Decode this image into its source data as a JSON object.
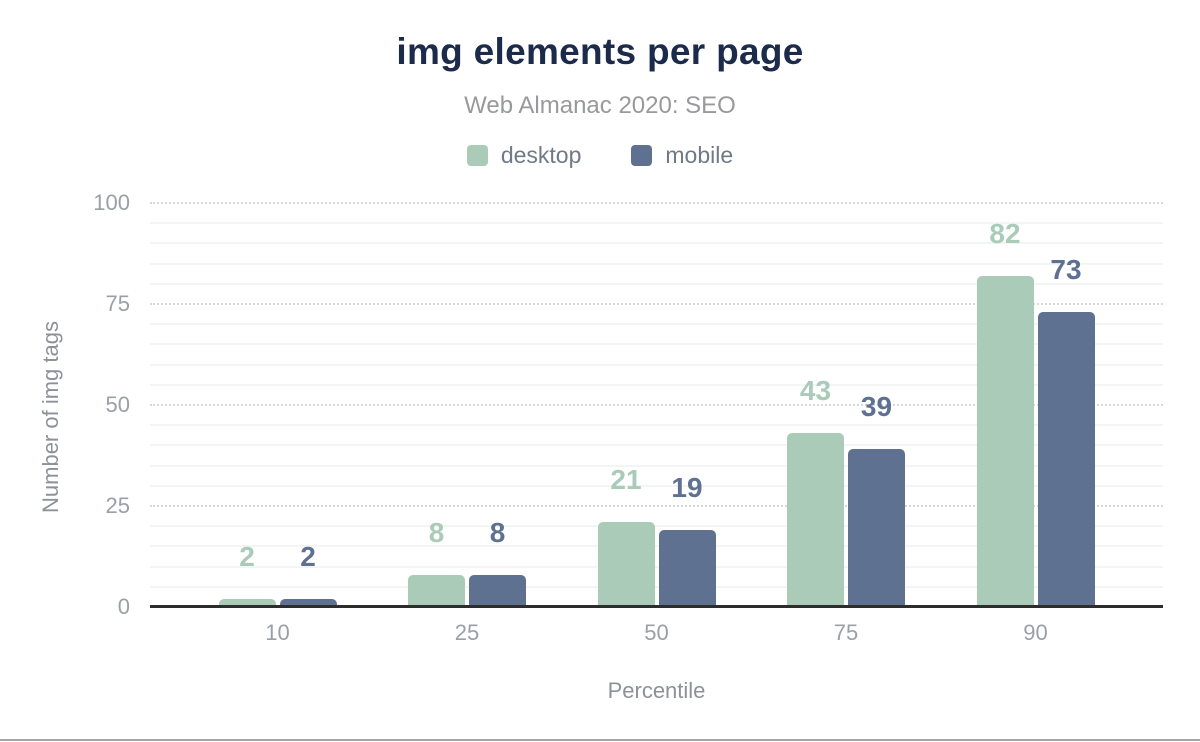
{
  "page": {
    "title": "img elements per page",
    "subtitle": "Web Almanac 2020: SEO"
  },
  "chart_data": {
    "type": "bar",
    "title": "img elements per page",
    "subtitle": "Web Almanac 2020: SEO",
    "categories": [
      "10",
      "25",
      "50",
      "75",
      "90"
    ],
    "series": [
      {
        "name": "desktop",
        "color": "#a9cbb7",
        "values": [
          2,
          8,
          21,
          43,
          82
        ]
      },
      {
        "name": "mobile",
        "color": "#5f7191",
        "values": [
          2,
          8,
          19,
          39,
          73
        ]
      }
    ],
    "xlabel": "Percentile",
    "ylabel": "Number of img tags",
    "ylim": [
      0,
      100
    ],
    "yticks": [
      0,
      25,
      50,
      75,
      100
    ],
    "minor_gridline_step": 5,
    "grid": true,
    "legend_position": "top",
    "value_labels": true
  },
  "colors": {
    "title_text": "#1c2b4a",
    "subtitle_text": "#98999b",
    "legend_text": "#707a87",
    "tick_label": "#9aa0a5",
    "axis_title": "#8d9298",
    "axis_line": "#2d2d2d",
    "minor_gridline": "#f3f4f4",
    "major_gridline": "#d6d8da",
    "bottom_rule": "#a6a6a6"
  }
}
